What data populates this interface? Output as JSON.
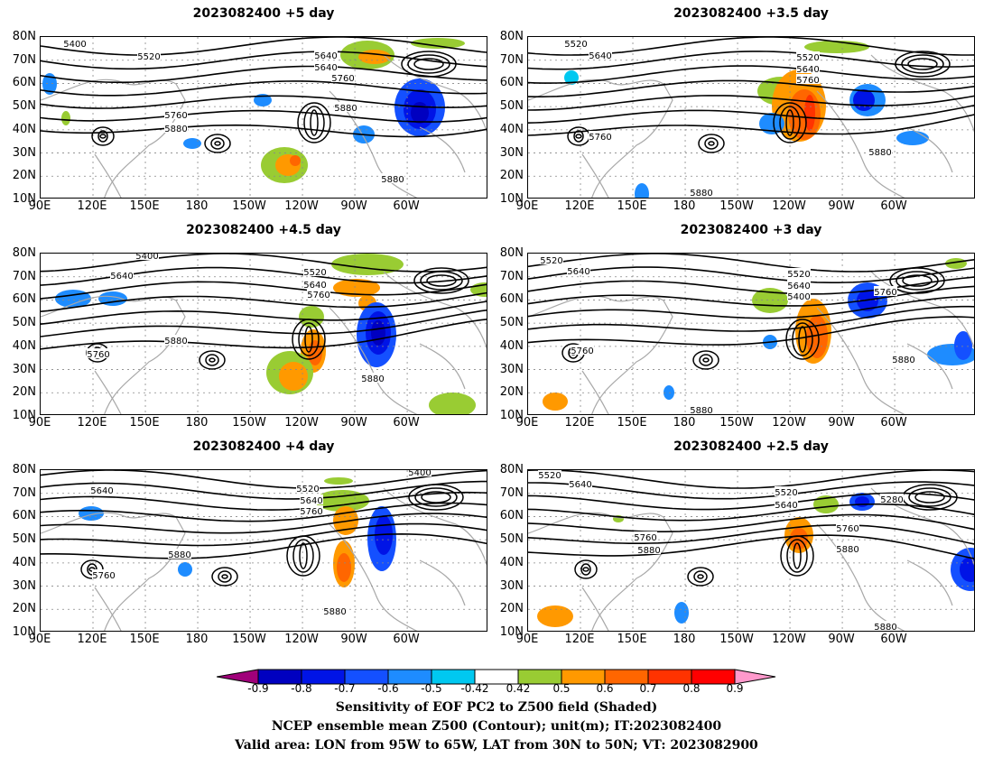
{
  "panels": [
    {
      "title": "2023082400 +5 day"
    },
    {
      "title": "2023082400 +3.5 day"
    },
    {
      "title": "2023082400 +4.5 day"
    },
    {
      "title": "2023082400 +3 day"
    },
    {
      "title": "2023082400 +4 day"
    },
    {
      "title": "2023082400 +2.5 day"
    }
  ],
  "axes": {
    "lat_labels": [
      "80N",
      "70N",
      "60N",
      "50N",
      "40N",
      "30N",
      "20N",
      "10N"
    ],
    "lon_labels": [
      "90E",
      "120E",
      "150E",
      "180",
      "150W",
      "120W",
      "90W",
      "60W"
    ]
  },
  "contour_labels": {
    "p0": [
      "5400",
      "5520",
      "5640",
      "5640",
      "5760",
      "5760",
      "5880",
      "5880",
      "5880"
    ],
    "p1": [
      "5520",
      "5640",
      "5520",
      "5640",
      "5760",
      "5760",
      "5880",
      "5880"
    ],
    "p2": [
      "5400",
      "5520",
      "5640",
      "5640",
      "5760",
      "5760",
      "5880",
      "5880"
    ],
    "p3": [
      "5520",
      "5640",
      "5520",
      "5640",
      "5760",
      "5400",
      "5760",
      "5880",
      "5880"
    ],
    "p4": [
      "5400",
      "5520",
      "5640",
      "5640",
      "5760",
      "5760",
      "5880",
      "5880"
    ],
    "p5": [
      "5520",
      "5640",
      "5520",
      "5640",
      "5280",
      "5760",
      "5760",
      "5880",
      "5880",
      "5880"
    ]
  },
  "colorbar": {
    "labels": [
      "-0.9",
      "-0.8",
      "-0.7",
      "-0.6",
      "-0.5",
      "-0.42",
      "0.42",
      "0.5",
      "0.6",
      "0.7",
      "0.8",
      "0.9"
    ],
    "colors": [
      "#a0007a",
      "#0000c0",
      "#0014e6",
      "#1450ff",
      "#1e8cff",
      "#00c8f0",
      "#ffffff",
      "#99cc33",
      "#ff9900",
      "#ff6600",
      "#ff3300",
      "#ff0000",
      "#ff99cc"
    ]
  },
  "footer": {
    "line1": "Sensitivity of EOF PC2 to Z500 field (Shaded)",
    "line2": "NCEP ensemble mean Z500 (Contour); unit(m); IT:2023082400",
    "line3": "Valid area: LON from 95W to 65W, LAT from 30N to 50N; VT: 2023082900"
  }
}
